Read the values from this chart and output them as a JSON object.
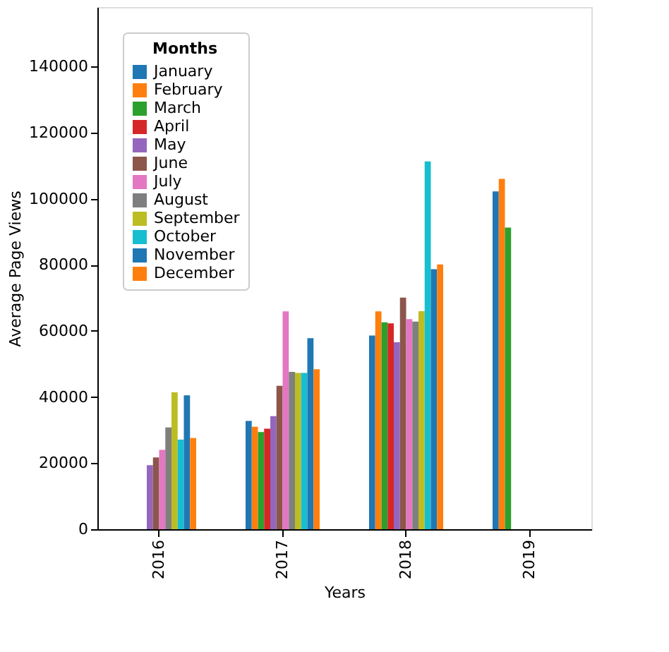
{
  "chart_data": {
    "type": "bar",
    "xlabel": "Years",
    "ylabel": "Average Page Views",
    "legend_title": "Months",
    "legend": "top left",
    "grid": false,
    "categories": [
      "2016",
      "2017",
      "2018",
      "2019"
    ],
    "ylim": [
      0,
      158000
    ],
    "yticks": [
      0,
      20000,
      40000,
      60000,
      80000,
      100000,
      120000,
      140000
    ],
    "series": [
      {
        "name": "January",
        "color": "#1f77b4",
        "values": [
          null,
          32800,
          58600,
          102200
        ]
      },
      {
        "name": "February",
        "color": "#ff7f0e",
        "values": [
          null,
          31000,
          65900,
          106000
        ]
      },
      {
        "name": "March",
        "color": "#2ca02c",
        "values": [
          null,
          29400,
          62600,
          91300
        ]
      },
      {
        "name": "April",
        "color": "#d62728",
        "values": [
          null,
          30400,
          62300,
          null
        ]
      },
      {
        "name": "May",
        "color": "#9467bd",
        "values": [
          19400,
          34200,
          56600,
          null
        ]
      },
      {
        "name": "June",
        "color": "#8c564b",
        "values": [
          21700,
          43400,
          70100,
          null
        ]
      },
      {
        "name": "July",
        "color": "#e377c2",
        "values": [
          24000,
          65900,
          63600,
          null
        ]
      },
      {
        "name": "August",
        "color": "#7f7f7f",
        "values": [
          30800,
          47600,
          62800,
          null
        ]
      },
      {
        "name": "September",
        "color": "#bcbd22",
        "values": [
          41400,
          47300,
          66000,
          null
        ]
      },
      {
        "name": "October",
        "color": "#17becf",
        "values": [
          27100,
          47300,
          111300,
          null
        ]
      },
      {
        "name": "November",
        "color": "#1f77b4",
        "values": [
          40500,
          57800,
          78700,
          null
        ]
      },
      {
        "name": "December",
        "color": "#ff7f0e",
        "values": [
          27600,
          48400,
          80100,
          null
        ]
      }
    ]
  }
}
